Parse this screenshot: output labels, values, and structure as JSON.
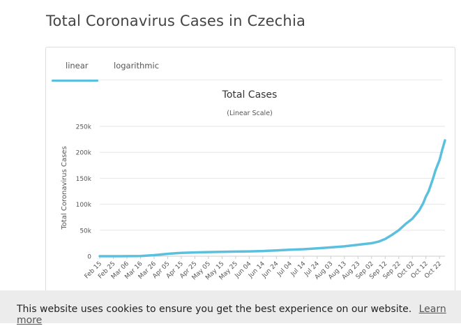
{
  "page": {
    "title": "Total Coronavirus Cases in Czechia"
  },
  "tabs": [
    {
      "label": "linear",
      "active": true
    },
    {
      "label": "logarithmic",
      "active": false
    }
  ],
  "cookie": {
    "message": "This website uses cookies to ensure you get the best experience on our website.",
    "link_label": "Learn more"
  },
  "colors": {
    "line": "#5bc0de",
    "tab_underline": "#5bc0de"
  },
  "chart_data": {
    "type": "line",
    "title": "Total Cases",
    "subtitle": "(Linear Scale)",
    "ylabel": "Total Coronavirus Cases",
    "xlabel": "",
    "ylim": [
      0,
      250000
    ],
    "yticks": [
      0,
      50000,
      100000,
      150000,
      200000,
      250000
    ],
    "ytick_labels": [
      "0",
      "50k",
      "100k",
      "150k",
      "200k",
      "250k"
    ],
    "grid": true,
    "legend": "none",
    "x_tick_labels": [
      "Feb 15",
      "Feb 25",
      "Mar 06",
      "Mar 16",
      "Mar 26",
      "Apr 05",
      "Apr 15",
      "Apr 25",
      "May 05",
      "May 15",
      "May 25",
      "Jun 04",
      "Jun 14",
      "Jun 24",
      "Jul 04",
      "Jul 14",
      "Jul 24",
      "Aug 03",
      "Aug 13",
      "Aug 23",
      "Sep 02",
      "Sep 12",
      "Sep 22",
      "Oct 02",
      "Oct 12",
      "Oct 22"
    ],
    "x_range": [
      "Feb 15",
      "Oct 26"
    ],
    "series": [
      {
        "points": [
          [
            "Feb 15",
            0
          ],
          [
            "Mar 01",
            0
          ],
          [
            "Mar 16",
            300
          ],
          [
            "Mar 26",
            2000
          ],
          [
            "Apr 05",
            4600
          ],
          [
            "Apr 15",
            6400
          ],
          [
            "Apr 25",
            7300
          ],
          [
            "May 05",
            7900
          ],
          [
            "May 15",
            8400
          ],
          [
            "May 25",
            8900
          ],
          [
            "Jun 04",
            9300
          ],
          [
            "Jun 14",
            10000
          ],
          [
            "Jun 24",
            11000
          ],
          [
            "Jul 04",
            12500
          ],
          [
            "Jul 14",
            13500
          ],
          [
            "Jul 24",
            15000
          ],
          [
            "Aug 03",
            17000
          ],
          [
            "Aug 13",
            19000
          ],
          [
            "Aug 23",
            22000
          ],
          [
            "Sep 02",
            25000
          ],
          [
            "Sep 07",
            28000
          ],
          [
            "Sep 12",
            33000
          ],
          [
            "Sep 17",
            41000
          ],
          [
            "Sep 22",
            50000
          ],
          [
            "Sep 27",
            62000
          ],
          [
            "Oct 02",
            72000
          ],
          [
            "Oct 07",
            88000
          ],
          [
            "Oct 10",
            102000
          ],
          [
            "Oct 12",
            115000
          ],
          [
            "Oct 14",
            125000
          ],
          [
            "Oct 17",
            148000
          ],
          [
            "Oct 19",
            165000
          ],
          [
            "Oct 22",
            185000
          ],
          [
            "Oct 24",
            205000
          ],
          [
            "Oct 26",
            223000
          ]
        ]
      }
    ]
  }
}
